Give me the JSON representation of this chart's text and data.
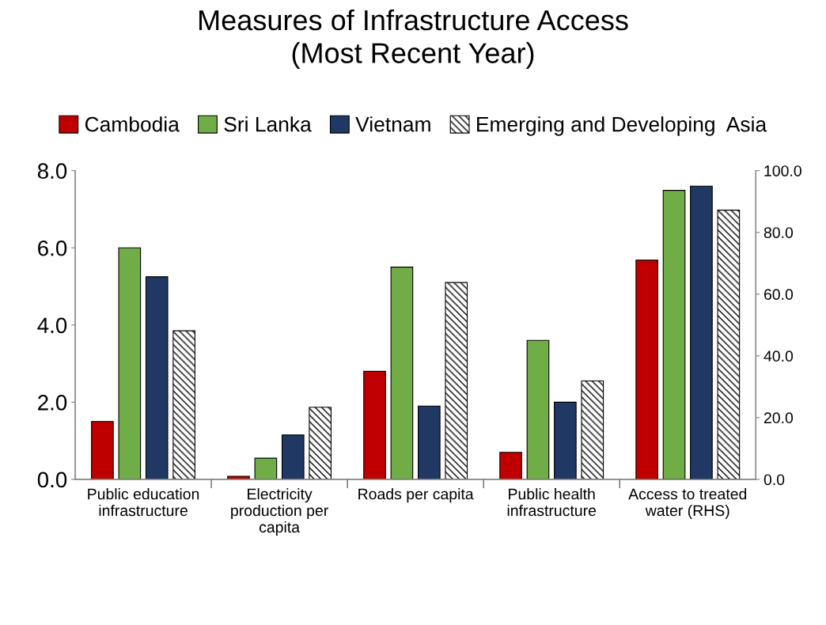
{
  "chart_data": {
    "type": "bar",
    "title": "Measures of Infrastructure Access\n(Most Recent Year)",
    "categories": [
      "Public education\ninfrastructure",
      "Electricity\nproduction per\ncapita",
      "Roads per capita",
      "Public health\ninfrastructure",
      "Access to treated\nwater (RHS)"
    ],
    "series": [
      {
        "name": "Cambodia",
        "color": "#c00000",
        "values": [
          1.5,
          0.08,
          2.8,
          0.7,
          null
        ]
      },
      {
        "name": "Sri Lanka",
        "color": "#70ad47",
        "values": [
          6.0,
          0.55,
          5.5,
          3.6,
          null
        ]
      },
      {
        "name": "Vietnam",
        "color": "#1f3864",
        "values": [
          5.25,
          1.15,
          1.9,
          2.0,
          null
        ]
      },
      {
        "name": "Emerging and Developing  Asia",
        "color": "#000000",
        "values": [
          3.85,
          1.87,
          5.1,
          2.55,
          null
        ]
      },
      {
        "color": "#c00000",
        "axis": "y2",
        "values": [
          null,
          null,
          null,
          null,
          71.0
        ]
      },
      {
        "color": "#70ad47",
        "axis": "y2",
        "values": [
          null,
          null,
          null,
          null,
          93.6
        ]
      },
      {
        "color": "#1f3864",
        "axis": "y2",
        "values": [
          null,
          null,
          null,
          null,
          95.0
        ]
      },
      {
        "color": "#000000",
        "axis": "y2",
        "values": [
          null,
          null,
          null,
          null,
          87.2
        ]
      }
    ],
    "ylim": [
      0,
      8
    ],
    "yticks": [
      {
        "value": 0,
        "label": "0.0"
      },
      {
        "value": 2,
        "label": "2.0"
      },
      {
        "value": 4,
        "label": "4.0"
      },
      {
        "value": 6,
        "label": "6.0"
      },
      {
        "value": 8,
        "label": "8.0"
      }
    ],
    "y2lim": [
      0,
      100
    ],
    "y2ticks": [
      {
        "value": 0,
        "label": "0.0"
      },
      {
        "value": 20,
        "label": "20.0"
      },
      {
        "value": 40,
        "label": "40.0"
      },
      {
        "value": 60,
        "label": "60.0"
      },
      {
        "value": 80,
        "label": "80.0"
      },
      {
        "value": 100,
        "label": "100.0"
      }
    ],
    "legend": "top",
    "grid": false
  }
}
